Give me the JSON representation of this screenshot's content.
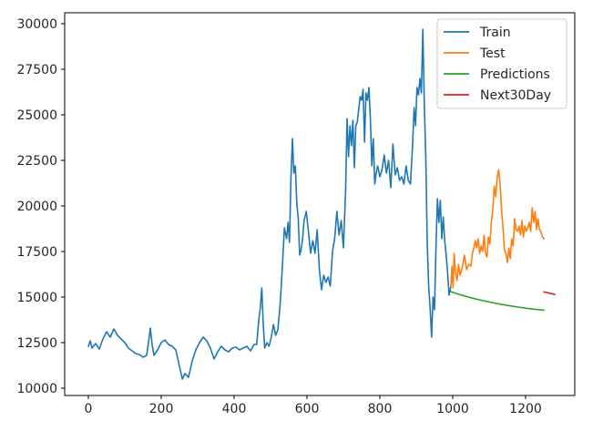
{
  "chart_data": {
    "type": "line",
    "title": "",
    "xlabel": "",
    "ylabel": "",
    "xlim": [
      -65,
      1335
    ],
    "ylim": [
      9600,
      30600
    ],
    "grid": false,
    "legend": {
      "placement": "top-right",
      "frame": true
    },
    "x_ticks": [
      {
        "value": 0,
        "label": "0"
      },
      {
        "value": 200,
        "label": "200"
      },
      {
        "value": 400,
        "label": "400"
      },
      {
        "value": 600,
        "label": "600"
      },
      {
        "value": 800,
        "label": "800"
      },
      {
        "value": 1000,
        "label": "1000"
      },
      {
        "value": 1200,
        "label": "1200"
      }
    ],
    "y_ticks": [
      {
        "value": 10000,
        "label": "10000"
      },
      {
        "value": 12500,
        "label": "12500"
      },
      {
        "value": 15000,
        "label": "15000"
      },
      {
        "value": 17500,
        "label": "17500"
      },
      {
        "value": 20000,
        "label": "20000"
      },
      {
        "value": 22500,
        "label": "22500"
      },
      {
        "value": 25000,
        "label": "25000"
      },
      {
        "value": 27500,
        "label": "27500"
      },
      {
        "value": 30000,
        "label": "30000"
      }
    ],
    "series": [
      {
        "name": "Train",
        "color": "#1f77b4",
        "points": [
          [
            0,
            12300
          ],
          [
            5,
            12600
          ],
          [
            10,
            12200
          ],
          [
            20,
            12450
          ],
          [
            30,
            12150
          ],
          [
            40,
            12700
          ],
          [
            50,
            13100
          ],
          [
            60,
            12800
          ],
          [
            70,
            13250
          ],
          [
            80,
            12900
          ],
          [
            90,
            12700
          ],
          [
            100,
            12500
          ],
          [
            110,
            12200
          ],
          [
            120,
            12050
          ],
          [
            130,
            11900
          ],
          [
            140,
            11850
          ],
          [
            150,
            11700
          ],
          [
            160,
            11800
          ],
          [
            165,
            12500
          ],
          [
            170,
            13300
          ],
          [
            175,
            12400
          ],
          [
            180,
            11800
          ],
          [
            190,
            12100
          ],
          [
            200,
            12500
          ],
          [
            210,
            12650
          ],
          [
            220,
            12400
          ],
          [
            230,
            12300
          ],
          [
            240,
            12100
          ],
          [
            250,
            11200
          ],
          [
            258,
            10500
          ],
          [
            265,
            10800
          ],
          [
            275,
            10600
          ],
          [
            285,
            11500
          ],
          [
            295,
            12100
          ],
          [
            305,
            12500
          ],
          [
            315,
            12800
          ],
          [
            325,
            12600
          ],
          [
            335,
            12200
          ],
          [
            345,
            11600
          ],
          [
            355,
            12000
          ],
          [
            365,
            12300
          ],
          [
            375,
            12100
          ],
          [
            385,
            12000
          ],
          [
            395,
            12200
          ],
          [
            405,
            12250
          ],
          [
            415,
            12100
          ],
          [
            425,
            12200
          ],
          [
            435,
            12300
          ],
          [
            445,
            12050
          ],
          [
            455,
            12400
          ],
          [
            462,
            12400
          ],
          [
            468,
            13800
          ],
          [
            472,
            14400
          ],
          [
            476,
            15500
          ],
          [
            480,
            13500
          ],
          [
            484,
            12200
          ],
          [
            490,
            12500
          ],
          [
            496,
            12300
          ],
          [
            502,
            12800
          ],
          [
            508,
            13500
          ],
          [
            514,
            12900
          ],
          [
            520,
            13200
          ],
          [
            526,
            14500
          ],
          [
            532,
            16500
          ],
          [
            538,
            18800
          ],
          [
            544,
            18200
          ],
          [
            548,
            19100
          ],
          [
            552,
            18000
          ],
          [
            556,
            21500
          ],
          [
            560,
            23700
          ],
          [
            564,
            21800
          ],
          [
            568,
            22200
          ],
          [
            572,
            20200
          ],
          [
            576,
            19300
          ],
          [
            580,
            17300
          ],
          [
            584,
            17600
          ],
          [
            588,
            18200
          ],
          [
            592,
            19200
          ],
          [
            598,
            19700
          ],
          [
            604,
            18600
          ],
          [
            610,
            17400
          ],
          [
            616,
            18100
          ],
          [
            622,
            17400
          ],
          [
            628,
            18700
          ],
          [
            634,
            16500
          ],
          [
            640,
            15400
          ],
          [
            646,
            16200
          ],
          [
            652,
            15800
          ],
          [
            658,
            16100
          ],
          [
            664,
            15600
          ],
          [
            670,
            17500
          ],
          [
            676,
            18200
          ],
          [
            682,
            19700
          ],
          [
            688,
            18400
          ],
          [
            694,
            19200
          ],
          [
            700,
            17700
          ],
          [
            706,
            20800
          ],
          [
            710,
            24800
          ],
          [
            714,
            22700
          ],
          [
            718,
            24400
          ],
          [
            722,
            23300
          ],
          [
            726,
            24700
          ],
          [
            730,
            22100
          ],
          [
            734,
            24400
          ],
          [
            738,
            24600
          ],
          [
            742,
            25300
          ],
          [
            746,
            26000
          ],
          [
            750,
            25800
          ],
          [
            754,
            26400
          ],
          [
            758,
            23500
          ],
          [
            762,
            26200
          ],
          [
            766,
            25800
          ],
          [
            770,
            26500
          ],
          [
            774,
            24800
          ],
          [
            778,
            22200
          ],
          [
            782,
            23700
          ],
          [
            786,
            21200
          ],
          [
            790,
            21800
          ],
          [
            794,
            22200
          ],
          [
            800,
            21600
          ],
          [
            806,
            22000
          ],
          [
            812,
            22800
          ],
          [
            818,
            21800
          ],
          [
            824,
            22500
          ],
          [
            830,
            21000
          ],
          [
            836,
            23400
          ],
          [
            842,
            21700
          ],
          [
            848,
            22100
          ],
          [
            854,
            21400
          ],
          [
            860,
            21600
          ],
          [
            866,
            21200
          ],
          [
            872,
            22200
          ],
          [
            878,
            21400
          ],
          [
            884,
            21200
          ],
          [
            890,
            23400
          ],
          [
            894,
            25400
          ],
          [
            898,
            24400
          ],
          [
            902,
            26500
          ],
          [
            906,
            26100
          ],
          [
            910,
            27000
          ],
          [
            914,
            26200
          ],
          [
            918,
            29700
          ],
          [
            922,
            25600
          ],
          [
            926,
            22800
          ],
          [
            930,
            18000
          ],
          [
            934,
            15600
          ],
          [
            938,
            14400
          ],
          [
            942,
            12800
          ],
          [
            946,
            15000
          ],
          [
            950,
            14300
          ],
          [
            954,
            17700
          ],
          [
            958,
            20400
          ],
          [
            962,
            19100
          ],
          [
            966,
            20300
          ],
          [
            970,
            18200
          ],
          [
            974,
            19400
          ],
          [
            978,
            18100
          ],
          [
            982,
            17300
          ],
          [
            986,
            16300
          ],
          [
            990,
            15100
          ],
          [
            995,
            15600
          ]
        ]
      },
      {
        "name": "Test",
        "color": "#ff7f0e",
        "points": [
          [
            995,
            15600
          ],
          [
            998,
            16700
          ],
          [
            1001,
            15500
          ],
          [
            1004,
            17400
          ],
          [
            1008,
            16300
          ],
          [
            1012,
            15900
          ],
          [
            1016,
            16800
          ],
          [
            1020,
            16200
          ],
          [
            1026,
            16600
          ],
          [
            1032,
            17300
          ],
          [
            1038,
            16500
          ],
          [
            1044,
            16800
          ],
          [
            1050,
            16700
          ],
          [
            1054,
            17400
          ],
          [
            1058,
            17700
          ],
          [
            1062,
            18100
          ],
          [
            1066,
            17700
          ],
          [
            1070,
            18200
          ],
          [
            1074,
            17400
          ],
          [
            1078,
            17800
          ],
          [
            1082,
            17500
          ],
          [
            1086,
            18400
          ],
          [
            1090,
            17400
          ],
          [
            1094,
            17200
          ],
          [
            1098,
            18300
          ],
          [
            1102,
            17900
          ],
          [
            1106,
            19100
          ],
          [
            1110,
            19800
          ],
          [
            1114,
            21100
          ],
          [
            1118,
            20500
          ],
          [
            1122,
            21500
          ],
          [
            1126,
            22000
          ],
          [
            1130,
            21200
          ],
          [
            1134,
            19800
          ],
          [
            1138,
            18800
          ],
          [
            1142,
            17600
          ],
          [
            1146,
            17400
          ],
          [
            1150,
            16900
          ],
          [
            1154,
            17700
          ],
          [
            1158,
            17100
          ],
          [
            1162,
            18200
          ],
          [
            1166,
            17800
          ],
          [
            1170,
            19300
          ],
          [
            1174,
            18700
          ],
          [
            1178,
            18600
          ],
          [
            1182,
            18900
          ],
          [
            1186,
            18400
          ],
          [
            1190,
            19200
          ],
          [
            1194,
            18300
          ],
          [
            1198,
            18900
          ],
          [
            1202,
            18600
          ],
          [
            1206,
            18800
          ],
          [
            1210,
            19100
          ],
          [
            1214,
            18600
          ],
          [
            1218,
            19900
          ],
          [
            1222,
            19100
          ],
          [
            1226,
            19700
          ],
          [
            1230,
            18700
          ],
          [
            1234,
            19300
          ],
          [
            1238,
            18700
          ],
          [
            1242,
            18600
          ],
          [
            1246,
            18300
          ],
          [
            1250,
            18200
          ]
        ]
      },
      {
        "name": "Predictions",
        "color": "#2ca02c",
        "points": [
          [
            995,
            15300
          ],
          [
            1000,
            15260
          ],
          [
            1020,
            15130
          ],
          [
            1040,
            15020
          ],
          [
            1060,
            14910
          ],
          [
            1080,
            14820
          ],
          [
            1100,
            14730
          ],
          [
            1120,
            14650
          ],
          [
            1140,
            14580
          ],
          [
            1160,
            14510
          ],
          [
            1180,
            14450
          ],
          [
            1200,
            14390
          ],
          [
            1220,
            14340
          ],
          [
            1240,
            14300
          ],
          [
            1250,
            14280
          ]
        ]
      },
      {
        "name": "Next30Day",
        "color": "#d62728",
        "points": [
          [
            1250,
            15280
          ],
          [
            1260,
            15240
          ],
          [
            1270,
            15190
          ],
          [
            1280,
            15150
          ]
        ]
      }
    ]
  }
}
